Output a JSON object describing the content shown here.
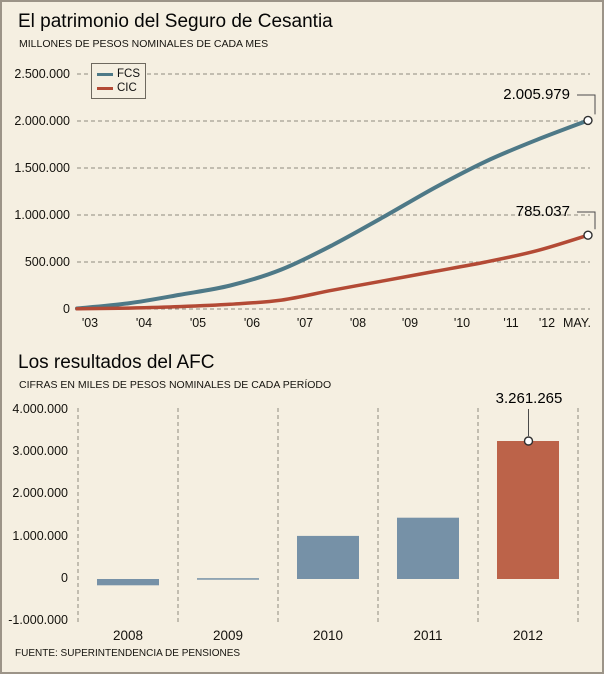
{
  "frame": {
    "background": "#f5efe1",
    "border_color": "#9c9488"
  },
  "chart_data": [
    {
      "type": "line",
      "title": "El patrimonio del Seguro de Cesantia",
      "subtitle": "MILLONES DE PESOS NOMINALES DE CADA MES",
      "x_tick_labels": [
        "'03",
        "'04",
        "'05",
        "'06",
        "'07",
        "'08",
        "'09",
        "'10",
        "'11",
        "'12",
        "MAY."
      ],
      "y_ticks": [
        {
          "label": "2.500.000",
          "value": 2500000
        },
        {
          "label": "2.000.000",
          "value": 2000000
        },
        {
          "label": "1.500.000",
          "value": 1500000
        },
        {
          "label": "1.000.000",
          "value": 1000000
        },
        {
          "label": "500.000",
          "value": 500000
        },
        {
          "label": "0",
          "value": 0
        }
      ],
      "ylim": [
        0,
        2500000
      ],
      "grid": "horizontal-dashed",
      "legend_position": "top-left",
      "series": [
        {
          "name": "FCS",
          "color": "#4e7987",
          "end_label": "2.005.979",
          "end_value": 2005979,
          "values": [
            5000,
            60000,
            150000,
            250000,
            420000,
            680000,
            980000,
            1290000,
            1570000,
            1800000,
            2005979
          ]
        },
        {
          "name": "CIC",
          "color": "#b34a35",
          "end_label": "785.037",
          "end_value": 785037,
          "values": [
            2000,
            10000,
            25000,
            50000,
            95000,
            200000,
            300000,
            400000,
            500000,
            620000,
            785037
          ]
        }
      ]
    },
    {
      "type": "bar",
      "title": "Los resultados del AFC",
      "subtitle": "CIFRAS EN MILES DE PESOS NOMINALES DE CADA PERÍODO",
      "categories": [
        "2008",
        "2009",
        "2010",
        "2011",
        "2012"
      ],
      "values": [
        -150000,
        20000,
        1020000,
        1450000,
        3261265
      ],
      "bar_colors": [
        "#7691a7",
        "#7691a7",
        "#7691a7",
        "#7691a7",
        "#bc6349"
      ],
      "annotation": {
        "label": "3.261.265",
        "category": "2012",
        "value": 3261265
      },
      "y_ticks": [
        {
          "label": "4.000.000",
          "value": 4000000
        },
        {
          "label": "3.000.000",
          "value": 3000000
        },
        {
          "label": "2.000.000",
          "value": 2000000
        },
        {
          "label": "1.000.000",
          "value": 1000000
        },
        {
          "label": "0",
          "value": 0
        },
        {
          "label": "-1.000.000",
          "value": -1000000
        }
      ],
      "ylim": [
        -1000000,
        4000000
      ],
      "grid": "vertical-dashed"
    }
  ],
  "source": "FUENTE: SUPERINTENDENCIA DE PENSIONES"
}
